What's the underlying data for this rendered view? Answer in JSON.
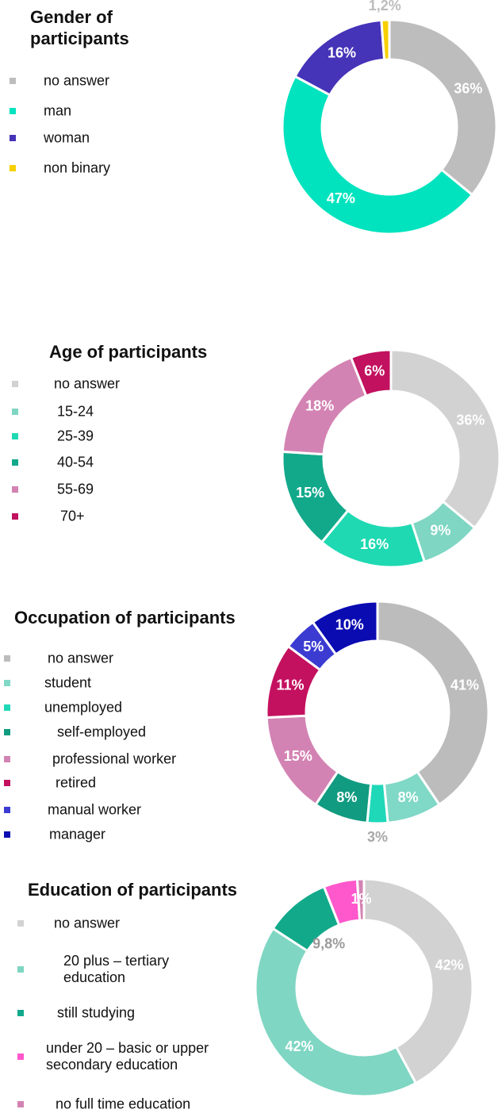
{
  "chart_data": [
    {
      "type": "pie",
      "donut": true,
      "title": "Gender of participants",
      "categories": [
        "no answer",
        "man",
        "woman",
        "non binary"
      ],
      "values": [
        36,
        47,
        16,
        1.2
      ],
      "value_labels": [
        "36%",
        "47%",
        "16%",
        "1,2%"
      ],
      "colors": [
        "#bdbdbd",
        "#00e3be",
        "#4533b8",
        "#f7d000"
      ]
    },
    {
      "type": "pie",
      "donut": true,
      "title": "Age of participants",
      "categories": [
        "no answer",
        "15-24",
        "25-39",
        "40-54",
        "55-69",
        "70+"
      ],
      "values": [
        36,
        9,
        16,
        15,
        18,
        6
      ],
      "value_labels": [
        "36%",
        "9%",
        "16%",
        "15%",
        "18%",
        "6%"
      ],
      "colors": [
        "#d2d2d2",
        "#7fd6c3",
        "#1fd9b2",
        "#12a98b",
        "#d383b3",
        "#c2115f"
      ]
    },
    {
      "type": "pie",
      "donut": true,
      "title": "Occupation of participants",
      "categories": [
        "no answer",
        "student",
        "unemployed",
        "self-employed",
        "professional worker",
        "retired",
        "manual worker",
        "manager"
      ],
      "values": [
        41,
        8,
        3,
        8,
        15,
        11,
        5,
        10
      ],
      "value_labels": [
        "41%",
        "8%",
        "3%",
        "8%",
        "15%",
        "11%",
        "5%",
        "10%"
      ],
      "colors": [
        "#bcbcbc",
        "#80d8c6",
        "#1fd8b8",
        "#119b80",
        "#d383b3",
        "#c4115f",
        "#3b3bd2",
        "#0b0bb2"
      ]
    },
    {
      "type": "pie",
      "donut": true,
      "title": "Education of participants",
      "categories": [
        "no answer",
        "20 plus – tertiary education",
        "still studying",
        "under 20 – basic or upper secondary education",
        "no full time education"
      ],
      "values": [
        42,
        42,
        9.8,
        5,
        1
      ],
      "value_labels": [
        "42%",
        "42%",
        "9,8%",
        null,
        "1%"
      ],
      "colors": [
        "#d2d2d2",
        "#7fd6c3",
        "#12a98b",
        "#ff57cc",
        "#d383b3"
      ]
    }
  ]
}
